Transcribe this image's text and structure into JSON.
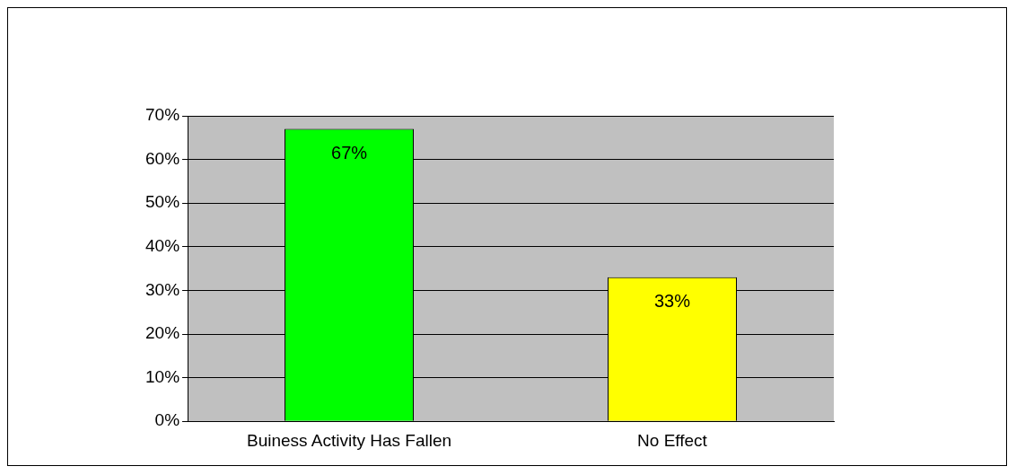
{
  "chart_data": {
    "type": "bar",
    "categories": [
      "Buiness Activity Has Fallen",
      "No Effect"
    ],
    "values": [
      67,
      33
    ],
    "colors": [
      "#00ff00",
      "#ffff00"
    ],
    "value_labels": [
      "67%",
      "33%"
    ],
    "ylim": [
      0,
      70
    ],
    "yticks": [
      {
        "value": 0,
        "label": "0%"
      },
      {
        "value": 10,
        "label": "10%"
      },
      {
        "value": 20,
        "label": "20%"
      },
      {
        "value": 30,
        "label": "30%"
      },
      {
        "value": 40,
        "label": "40%"
      },
      {
        "value": 50,
        "label": "50%"
      },
      {
        "value": 60,
        "label": "60%"
      },
      {
        "value": 70,
        "label": "70%"
      }
    ],
    "grid": "y",
    "legend": false
  }
}
